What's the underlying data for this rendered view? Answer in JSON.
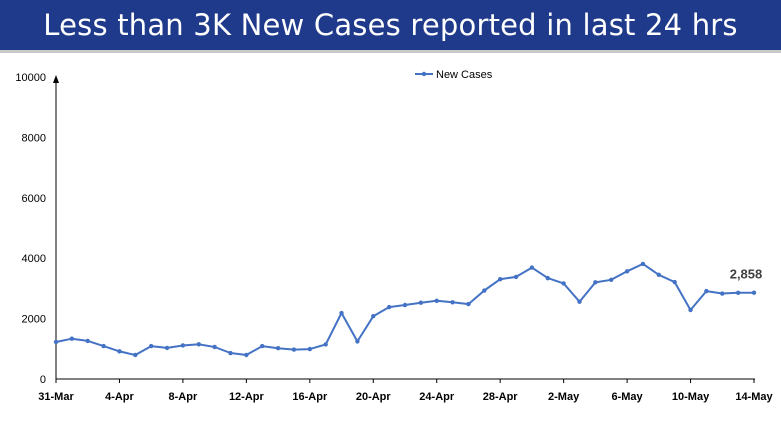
{
  "banner": {
    "title": "Less than 3K New Cases reported in last 24 hrs",
    "background": "#1f3a8a",
    "text_color": "#ffffff"
  },
  "chart_data": {
    "type": "line",
    "title": "",
    "xlabel": "",
    "ylabel": "",
    "ylim": [
      0,
      10000
    ],
    "yticks": [
      0,
      2000,
      4000,
      6000,
      8000,
      10000
    ],
    "x": [
      "31-Mar",
      "1-Apr",
      "2-Apr",
      "3-Apr",
      "4-Apr",
      "5-Apr",
      "6-Apr",
      "7-Apr",
      "8-Apr",
      "9-Apr",
      "10-Apr",
      "11-Apr",
      "12-Apr",
      "13-Apr",
      "14-Apr",
      "15-Apr",
      "16-Apr",
      "17-Apr",
      "18-Apr",
      "19-Apr",
      "20-Apr",
      "21-Apr",
      "22-Apr",
      "23-Apr",
      "24-Apr",
      "25-Apr",
      "26-Apr",
      "27-Apr",
      "28-Apr",
      "29-Apr",
      "30-Apr",
      "1-May",
      "2-May",
      "3-May",
      "4-May",
      "5-May",
      "6-May",
      "7-May",
      "8-May",
      "9-May",
      "10-May",
      "11-May",
      "12-May",
      "13-May",
      "14-May"
    ],
    "xtick_labels": [
      "31-Mar",
      "4-Apr",
      "8-Apr",
      "12-Apr",
      "16-Apr",
      "20-Apr",
      "24-Apr",
      "28-Apr",
      "2-May",
      "6-May",
      "10-May",
      "14-May"
    ],
    "series": [
      {
        "name": "New Cases",
        "color": "#4472c4",
        "values": [
          1225,
          1335,
          1260,
          1090,
          915,
          795,
          1090,
          1030,
          1110,
          1150,
          1060,
          860,
          795,
          1090,
          1020,
          975,
          990,
          1145,
          2185,
          1245,
          2080,
          2380,
          2450,
          2525,
          2590,
          2540,
          2480,
          2930,
          3305,
          3380,
          3690,
          3340,
          3165,
          2560,
          3200,
          3285,
          3565,
          3810,
          3450,
          3210,
          2285,
          2910,
          2830,
          2855,
          2858
        ]
      }
    ],
    "annotations": [
      {
        "label": "2,858",
        "x": "14-May",
        "y": 2858
      }
    ],
    "legend_position": "top-center",
    "grid": false,
    "markers": true
  }
}
